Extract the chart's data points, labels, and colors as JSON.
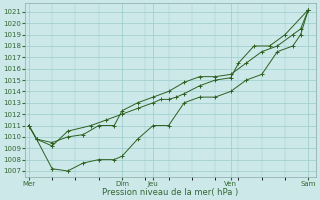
{
  "bg_color": "#cce8e8",
  "grid_color": "#99cccc",
  "line_color": "#2d6020",
  "ylabel_text": "Pression niveau de la mer( hPa )",
  "ylim": [
    1006.5,
    1021.8
  ],
  "yticks": [
    1007,
    1008,
    1009,
    1010,
    1011,
    1012,
    1013,
    1014,
    1015,
    1016,
    1017,
    1018,
    1019,
    1020,
    1021
  ],
  "x_day_positions": [
    0,
    12,
    16,
    26,
    36
  ],
  "x_day_labels": [
    "Mer",
    "Dim",
    "Jeu",
    "Ven",
    "Sam"
  ],
  "xlim": [
    -0.5,
    37
  ],
  "line1_x": [
    0,
    1,
    3,
    5,
    8,
    10,
    12,
    14,
    16,
    17,
    18,
    19,
    20,
    22,
    24,
    26,
    27,
    29,
    31,
    33,
    36
  ],
  "line1_y": [
    1011.0,
    1009.8,
    1009.2,
    1010.5,
    1011.0,
    1011.5,
    1012.0,
    1012.5,
    1013.0,
    1013.3,
    1013.3,
    1013.5,
    1013.8,
    1014.5,
    1015.0,
    1015.2,
    1016.5,
    1018.0,
    1018.0,
    1019.0,
    1021.2
  ],
  "line2_x": [
    0,
    1,
    3,
    5,
    7,
    9,
    11,
    12,
    14,
    16,
    18,
    20,
    22,
    24,
    26,
    28,
    30,
    32,
    34,
    35,
    36
  ],
  "line2_y": [
    1011.0,
    1009.8,
    1007.2,
    1007.0,
    1007.7,
    1008.0,
    1008.0,
    1008.3,
    1009.8,
    1011.0,
    1011.0,
    1013.0,
    1013.5,
    1013.5,
    1014.0,
    1015.0,
    1015.5,
    1017.5,
    1018.0,
    1019.0,
    1021.2
  ],
  "line3_x": [
    0,
    1,
    3,
    5,
    7,
    9,
    11,
    12,
    14,
    16,
    18,
    20,
    22,
    24,
    26,
    28,
    30,
    32,
    34,
    35,
    36
  ],
  "line3_y": [
    1011.0,
    1009.8,
    1009.5,
    1010.0,
    1010.2,
    1011.0,
    1011.0,
    1012.3,
    1013.0,
    1013.5,
    1014.0,
    1014.8,
    1015.3,
    1015.3,
    1015.5,
    1016.5,
    1017.5,
    1018.0,
    1019.0,
    1019.5,
    1021.2
  ],
  "fontsize_tick": 5,
  "fontsize_xlabel": 6
}
